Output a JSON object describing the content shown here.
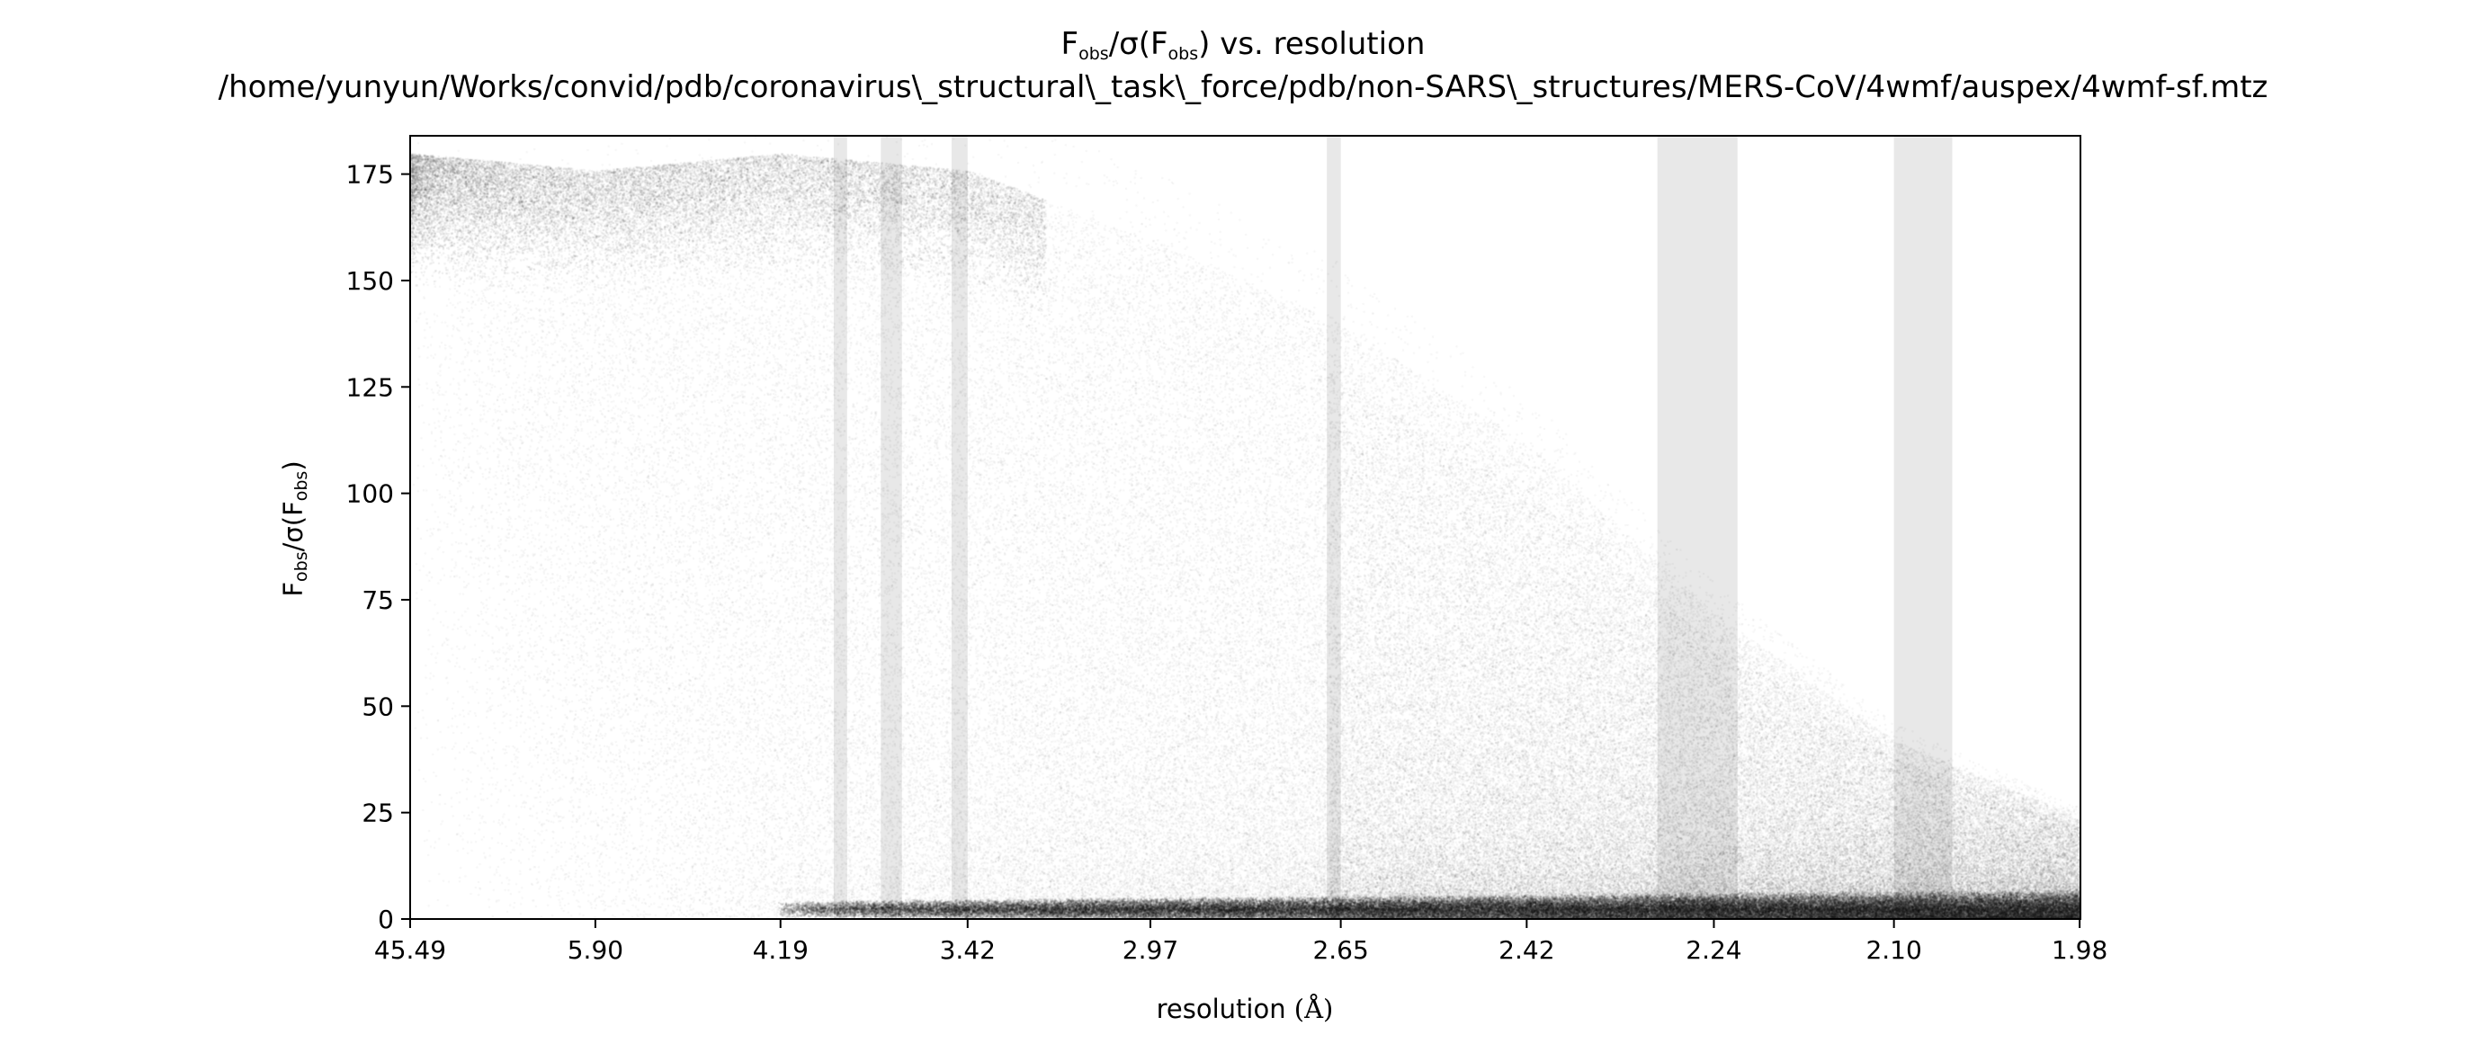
{
  "chart_data": {
    "type": "scatter",
    "title_line1": "Fobs/σ(Fobs) vs. resolution",
    "title_line1_parts": {
      "f": "F",
      "sub1": "obs",
      "mid": "/σ(F",
      "sub2": "obs",
      "tail": ") vs. resolution"
    },
    "title_line2": "/home/yunyun/Works/convid/pdb/coronavirus\\_structural\\_task\\_force/pdb/non-SARS\\_structures/MERS-CoV/4wmf/auspex/4wmf-sf.mtz",
    "xlabel": "resolution (Å)",
    "xlabel_parts": {
      "text": "resolution ",
      "unit": "(Å)"
    },
    "ylabel": "Fobs/σ(Fobs)",
    "ylabel_parts": {
      "f": "F",
      "sub1": "obs",
      "mid": "/σ(F",
      "sub2": "obs",
      "tail": ")"
    },
    "x_axis": {
      "scale": "1/d^2",
      "range": [
        0.000483,
        0.2552
      ],
      "ticks": [
        "45.49",
        "5.90",
        "4.19",
        "3.42",
        "2.97",
        "2.65",
        "2.42",
        "2.24",
        "2.10",
        "1.98"
      ]
    },
    "ylim": [
      0,
      184
    ],
    "yticks": [
      0,
      25,
      50,
      75,
      100,
      125,
      150,
      175
    ],
    "ice_ring_bands": [
      {
        "d_low": 3.92,
        "d_high": 3.86
      },
      {
        "d_low": 3.72,
        "d_high": 3.64
      },
      {
        "d_low": 3.47,
        "d_high": 3.42
      },
      {
        "d_low": 2.67,
        "d_high": 2.65
      },
      {
        "d_low": 2.29,
        "d_high": 2.22
      },
      {
        "d_low": 2.1,
        "d_high": 2.06
      }
    ],
    "series": [
      {
        "density_profile": [
          {
            "d": 45.49,
            "y_ceiling": 180
          },
          {
            "d": 5.9,
            "y_ceiling": 176
          },
          {
            "d": 4.19,
            "y_ceiling": 180
          },
          {
            "d": 3.42,
            "y_ceiling": 176
          },
          {
            "d": 2.97,
            "y_ceiling": 160
          },
          {
            "d": 2.65,
            "y_ceiling": 140
          },
          {
            "d": 2.42,
            "y_ceiling": 112
          },
          {
            "d": 2.24,
            "y_ceiling": 72
          },
          {
            "d": 2.1,
            "y_ceiling": 42
          },
          {
            "d": 1.98,
            "y_ceiling": 24
          }
        ],
        "low_value_floor": 2.5,
        "point_count": 150000
      }
    ],
    "colors": {
      "points": "#000000",
      "bands": "#d6d6d6",
      "axes": "#000000"
    },
    "grid": false,
    "legend": "none"
  }
}
